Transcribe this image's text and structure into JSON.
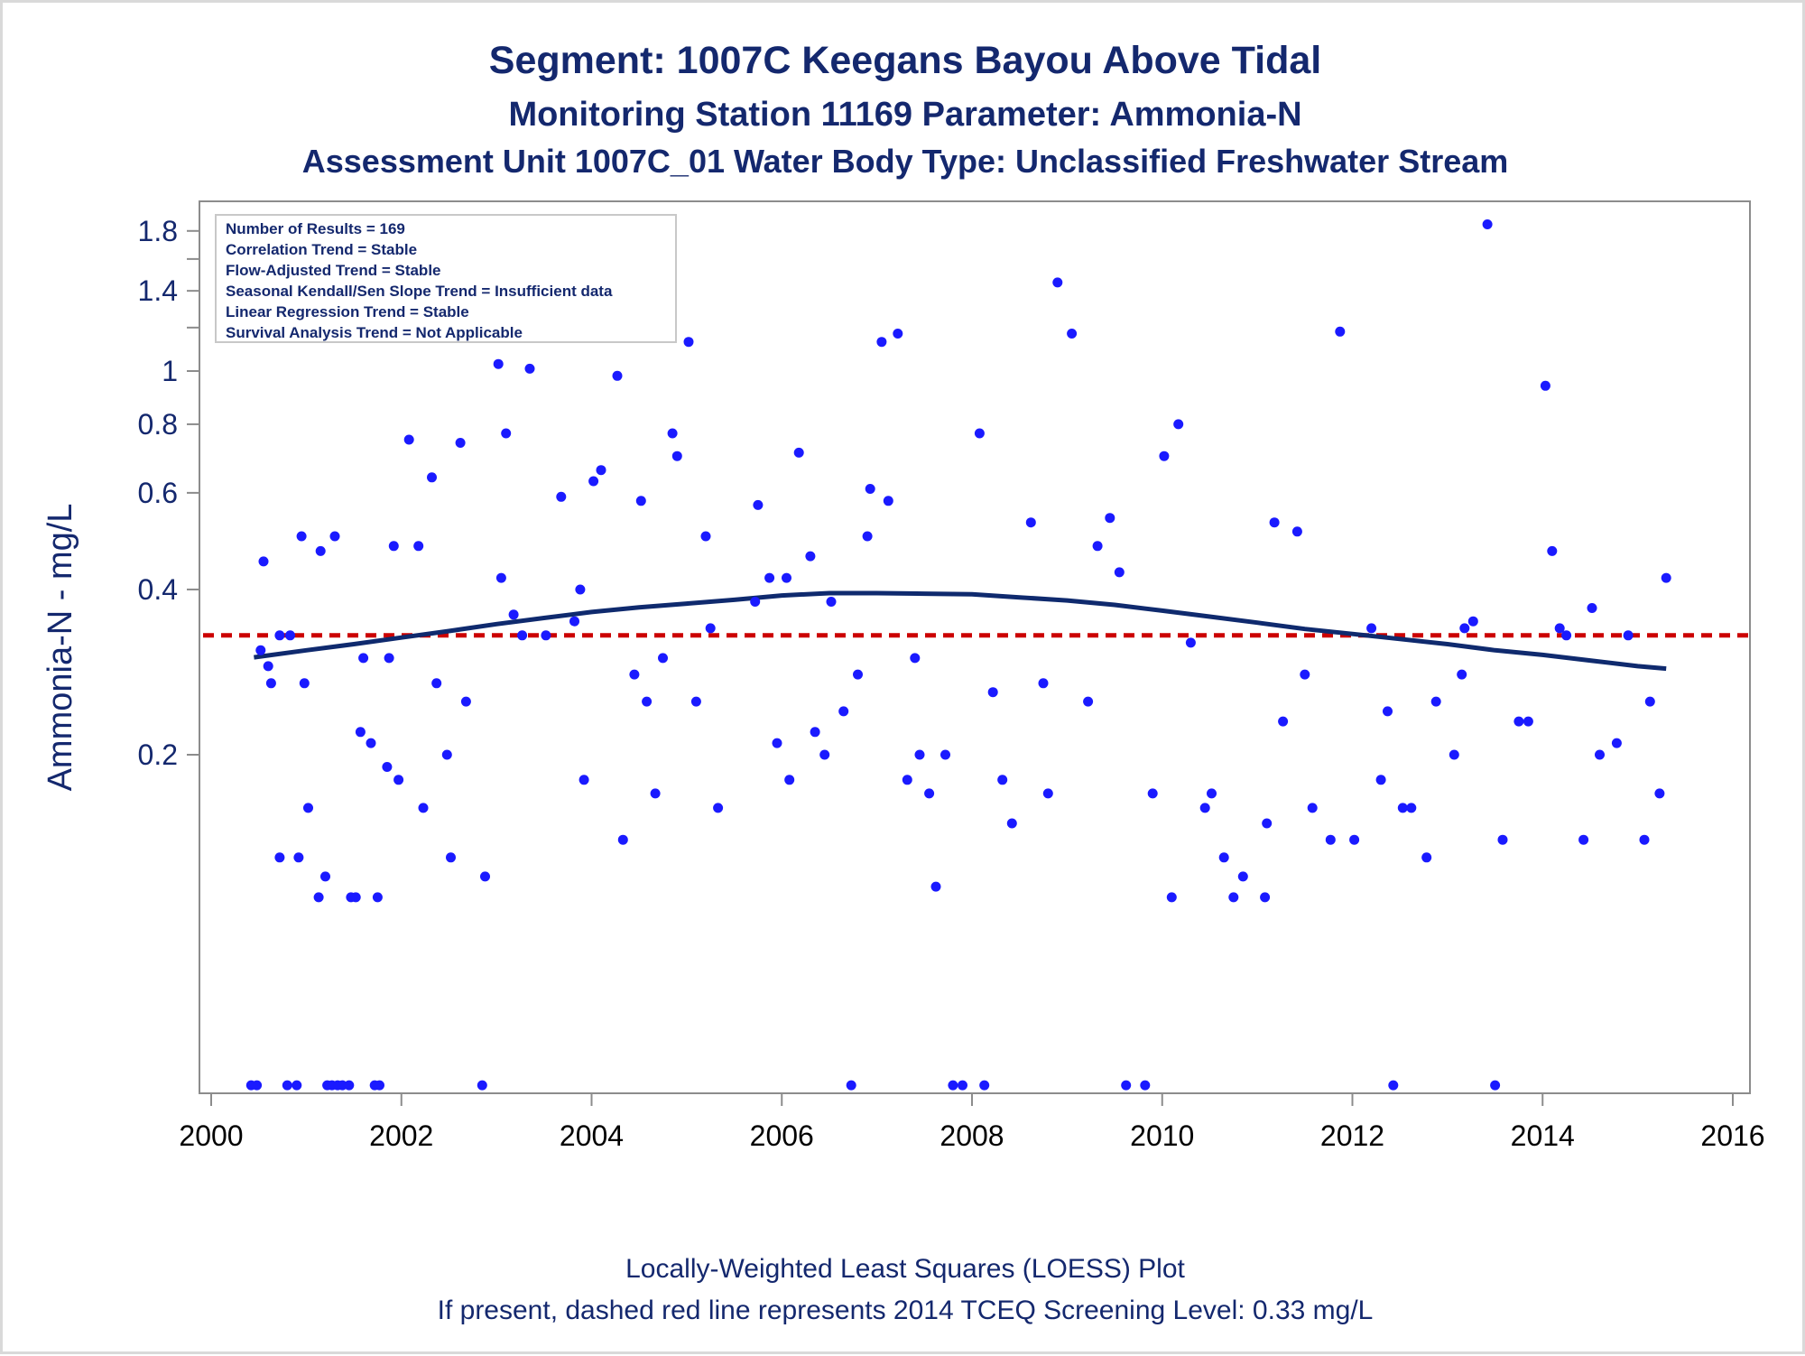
{
  "title": {
    "line1": "Segment: 1007C  Keegans Bayou Above Tidal",
    "line2": "Monitoring Station 11169 Parameter: Ammonia-N",
    "line3": "Assessment Unit 1007C_01   Water Body Type: Unclassified Freshwater Stream"
  },
  "inset": [
    "Number of Results = 169",
    "Correlation Trend = Stable",
    "Flow-Adjusted Trend = Stable",
    "Seasonal Kendall/Sen Slope Trend = Insufficient data",
    "Linear Regression Trend = Stable",
    "Survival Analysis Trend = Not Applicable"
  ],
  "footnote": {
    "line1": "Locally-Weighted Least Squares (LOESS) Plot",
    "line2": "If present, dashed red line represents 2014 TCEQ Screening Level: 0.33 mg/L"
  },
  "chart_data": {
    "type": "scatter",
    "ylabel": "Ammonia-N - mg/L",
    "xlabel": "",
    "x_ticks": [
      "2000",
      "2002",
      "2004",
      "2006",
      "2008",
      "2010",
      "2012",
      "2014",
      "2016"
    ],
    "y_ticks": [
      "0.2",
      "0.4",
      "0.6",
      "0.8",
      "1",
      "1.4",
      "1.8"
    ],
    "y_scale": "log",
    "xlim": [
      2000,
      2016
    ],
    "ylim": [
      0.05,
      2.0
    ],
    "grid": false,
    "screening_level": 0.33,
    "colors": {
      "points": "#1a1aff",
      "loess": "#0f2a6e",
      "screening": "#cc0000",
      "text": "#14286e"
    },
    "loess": {
      "x": [
        2000.45,
        2001.0,
        2001.5,
        2002.0,
        2002.5,
        2003.0,
        2003.5,
        2004.0,
        2004.5,
        2005.0,
        2005.5,
        2006.0,
        2006.5,
        2007.0,
        2007.5,
        2008.0,
        2008.5,
        2009.0,
        2009.5,
        2010.0,
        2010.5,
        2011.0,
        2011.5,
        2012.0,
        2012.5,
        2013.0,
        2013.5,
        2014.0,
        2014.5,
        2015.0,
        2015.3
      ],
      "y": [
        0.301,
        0.31,
        0.318,
        0.327,
        0.336,
        0.346,
        0.355,
        0.364,
        0.371,
        0.377,
        0.383,
        0.39,
        0.394,
        0.394,
        0.393,
        0.392,
        0.387,
        0.382,
        0.375,
        0.366,
        0.357,
        0.348,
        0.339,
        0.332,
        0.325,
        0.318,
        0.31,
        0.304,
        0.297,
        0.29,
        0.287
      ]
    },
    "points": [
      {
        "x": 2000.42,
        "y": 0.05
      },
      {
        "x": 2000.48,
        "y": 0.05
      },
      {
        "x": 2000.52,
        "y": 0.31
      },
      {
        "x": 2000.55,
        "y": 0.45
      },
      {
        "x": 2000.6,
        "y": 0.29
      },
      {
        "x": 2000.63,
        "y": 0.27
      },
      {
        "x": 2000.72,
        "y": 0.33
      },
      {
        "x": 2000.72,
        "y": 0.13
      },
      {
        "x": 2000.8,
        "y": 0.05
      },
      {
        "x": 2000.83,
        "y": 0.33
      },
      {
        "x": 2000.9,
        "y": 0.05
      },
      {
        "x": 2000.92,
        "y": 0.13
      },
      {
        "x": 2000.95,
        "y": 0.5
      },
      {
        "x": 2000.98,
        "y": 0.27
      },
      {
        "x": 2001.02,
        "y": 0.16
      },
      {
        "x": 2001.07,
        "y": 1.15
      },
      {
        "x": 2001.13,
        "y": 0.11
      },
      {
        "x": 2001.15,
        "y": 0.47
      },
      {
        "x": 2001.2,
        "y": 0.12
      },
      {
        "x": 2001.22,
        "y": 0.05
      },
      {
        "x": 2001.27,
        "y": 0.05
      },
      {
        "x": 2001.3,
        "y": 0.5
      },
      {
        "x": 2001.33,
        "y": 0.05
      },
      {
        "x": 2001.38,
        "y": 0.05
      },
      {
        "x": 2001.45,
        "y": 0.05
      },
      {
        "x": 2001.47,
        "y": 0.11
      },
      {
        "x": 2001.52,
        "y": 0.11
      },
      {
        "x": 2001.57,
        "y": 0.22
      },
      {
        "x": 2001.6,
        "y": 0.3
      },
      {
        "x": 2001.68,
        "y": 0.21
      },
      {
        "x": 2001.72,
        "y": 0.05
      },
      {
        "x": 2001.75,
        "y": 0.11
      },
      {
        "x": 2001.77,
        "y": 0.05
      },
      {
        "x": 2001.85,
        "y": 0.19
      },
      {
        "x": 2001.87,
        "y": 0.3
      },
      {
        "x": 2001.92,
        "y": 0.48
      },
      {
        "x": 2001.97,
        "y": 0.18
      },
      {
        "x": 2002.08,
        "y": 0.75
      },
      {
        "x": 2002.18,
        "y": 0.48
      },
      {
        "x": 2002.23,
        "y": 0.16
      },
      {
        "x": 2002.32,
        "y": 0.64
      },
      {
        "x": 2002.37,
        "y": 0.27
      },
      {
        "x": 2002.48,
        "y": 0.2
      },
      {
        "x": 2002.52,
        "y": 0.13
      },
      {
        "x": 2002.62,
        "y": 0.74
      },
      {
        "x": 2002.68,
        "y": 0.25
      },
      {
        "x": 2002.85,
        "y": 0.05
      },
      {
        "x": 2002.88,
        "y": 0.12
      },
      {
        "x": 2003.02,
        "y": 1.03
      },
      {
        "x": 2003.05,
        "y": 0.42
      },
      {
        "x": 2003.1,
        "y": 0.77
      },
      {
        "x": 2003.18,
        "y": 0.36
      },
      {
        "x": 2003.27,
        "y": 0.33
      },
      {
        "x": 2003.35,
        "y": 1.01
      },
      {
        "x": 2003.42,
        "y": 1.15
      },
      {
        "x": 2003.52,
        "y": 0.33
      },
      {
        "x": 2003.68,
        "y": 0.59
      },
      {
        "x": 2003.82,
        "y": 0.35
      },
      {
        "x": 2003.88,
        "y": 0.4
      },
      {
        "x": 2003.92,
        "y": 0.18
      },
      {
        "x": 2004.02,
        "y": 0.63
      },
      {
        "x": 2004.1,
        "y": 0.66
      },
      {
        "x": 2004.27,
        "y": 0.98
      },
      {
        "x": 2004.33,
        "y": 0.14
      },
      {
        "x": 2004.45,
        "y": 0.28
      },
      {
        "x": 2004.52,
        "y": 0.58
      },
      {
        "x": 2004.58,
        "y": 0.25
      },
      {
        "x": 2004.67,
        "y": 0.17
      },
      {
        "x": 2004.75,
        "y": 0.3
      },
      {
        "x": 2004.85,
        "y": 0.77
      },
      {
        "x": 2004.9,
        "y": 0.7
      },
      {
        "x": 2005.02,
        "y": 1.13
      },
      {
        "x": 2005.1,
        "y": 0.25
      },
      {
        "x": 2005.2,
        "y": 0.5
      },
      {
        "x": 2005.25,
        "y": 0.34
      },
      {
        "x": 2005.33,
        "y": 0.16
      },
      {
        "x": 2005.72,
        "y": 0.38
      },
      {
        "x": 2005.75,
        "y": 0.57
      },
      {
        "x": 2005.87,
        "y": 0.42
      },
      {
        "x": 2005.95,
        "y": 0.21
      },
      {
        "x": 2006.05,
        "y": 0.42
      },
      {
        "x": 2006.08,
        "y": 0.18
      },
      {
        "x": 2006.18,
        "y": 0.71
      },
      {
        "x": 2006.3,
        "y": 0.46
      },
      {
        "x": 2006.35,
        "y": 0.22
      },
      {
        "x": 2006.45,
        "y": 0.2
      },
      {
        "x": 2006.52,
        "y": 0.38
      },
      {
        "x": 2006.65,
        "y": 0.24
      },
      {
        "x": 2006.73,
        "y": 0.05
      },
      {
        "x": 2006.8,
        "y": 0.28
      },
      {
        "x": 2006.9,
        "y": 0.5
      },
      {
        "x": 2006.93,
        "y": 0.61
      },
      {
        "x": 2007.05,
        "y": 1.13
      },
      {
        "x": 2007.12,
        "y": 0.58
      },
      {
        "x": 2007.22,
        "y": 1.17
      },
      {
        "x": 2007.32,
        "y": 0.18
      },
      {
        "x": 2007.4,
        "y": 0.3
      },
      {
        "x": 2007.45,
        "y": 0.2
      },
      {
        "x": 2007.55,
        "y": 0.17
      },
      {
        "x": 2007.62,
        "y": 0.115
      },
      {
        "x": 2007.72,
        "y": 0.2
      },
      {
        "x": 2007.8,
        "y": 0.05
      },
      {
        "x": 2007.9,
        "y": 0.05
      },
      {
        "x": 2008.08,
        "y": 0.77
      },
      {
        "x": 2008.13,
        "y": 0.05
      },
      {
        "x": 2008.22,
        "y": 0.26
      },
      {
        "x": 2008.32,
        "y": 0.18
      },
      {
        "x": 2008.42,
        "y": 0.15
      },
      {
        "x": 2008.62,
        "y": 0.53
      },
      {
        "x": 2008.75,
        "y": 0.27
      },
      {
        "x": 2008.8,
        "y": 0.17
      },
      {
        "x": 2008.9,
        "y": 1.45
      },
      {
        "x": 2009.05,
        "y": 1.17
      },
      {
        "x": 2009.22,
        "y": 0.25
      },
      {
        "x": 2009.32,
        "y": 0.48
      },
      {
        "x": 2009.45,
        "y": 0.54
      },
      {
        "x": 2009.55,
        "y": 0.43
      },
      {
        "x": 2009.62,
        "y": 0.05
      },
      {
        "x": 2009.82,
        "y": 0.05
      },
      {
        "x": 2009.9,
        "y": 0.17
      },
      {
        "x": 2010.02,
        "y": 0.7
      },
      {
        "x": 2010.1,
        "y": 0.11
      },
      {
        "x": 2010.17,
        "y": 0.8
      },
      {
        "x": 2010.3,
        "y": 0.32
      },
      {
        "x": 2010.45,
        "y": 0.16
      },
      {
        "x": 2010.52,
        "y": 0.17
      },
      {
        "x": 2010.65,
        "y": 0.13
      },
      {
        "x": 2010.75,
        "y": 0.11
      },
      {
        "x": 2010.85,
        "y": 0.12
      },
      {
        "x": 2011.08,
        "y": 0.11
      },
      {
        "x": 2011.1,
        "y": 0.15
      },
      {
        "x": 2011.18,
        "y": 0.53
      },
      {
        "x": 2011.27,
        "y": 0.23
      },
      {
        "x": 2011.42,
        "y": 0.51
      },
      {
        "x": 2011.5,
        "y": 0.28
      },
      {
        "x": 2011.58,
        "y": 0.16
      },
      {
        "x": 2011.77,
        "y": 0.14
      },
      {
        "x": 2011.87,
        "y": 1.18
      },
      {
        "x": 2012.02,
        "y": 0.14
      },
      {
        "x": 2012.2,
        "y": 0.34
      },
      {
        "x": 2012.3,
        "y": 0.18
      },
      {
        "x": 2012.37,
        "y": 0.24
      },
      {
        "x": 2012.43,
        "y": 0.05
      },
      {
        "x": 2012.53,
        "y": 0.16
      },
      {
        "x": 2012.62,
        "y": 0.16
      },
      {
        "x": 2012.78,
        "y": 0.13
      },
      {
        "x": 2012.88,
        "y": 0.25
      },
      {
        "x": 2013.07,
        "y": 0.2
      },
      {
        "x": 2013.15,
        "y": 0.28
      },
      {
        "x": 2013.18,
        "y": 0.34
      },
      {
        "x": 2013.27,
        "y": 0.35
      },
      {
        "x": 2013.42,
        "y": 1.85
      },
      {
        "x": 2013.5,
        "y": 0.05
      },
      {
        "x": 2013.58,
        "y": 0.14
      },
      {
        "x": 2013.75,
        "y": 0.23
      },
      {
        "x": 2013.85,
        "y": 0.23
      },
      {
        "x": 2014.03,
        "y": 0.94
      },
      {
        "x": 2014.1,
        "y": 0.47
      },
      {
        "x": 2014.18,
        "y": 0.34
      },
      {
        "x": 2014.25,
        "y": 0.33
      },
      {
        "x": 2014.43,
        "y": 0.14
      },
      {
        "x": 2014.52,
        "y": 0.37
      },
      {
        "x": 2014.6,
        "y": 0.2
      },
      {
        "x": 2014.78,
        "y": 0.21
      },
      {
        "x": 2014.9,
        "y": 0.33
      },
      {
        "x": 2015.07,
        "y": 0.14
      },
      {
        "x": 2015.13,
        "y": 0.25
      },
      {
        "x": 2015.23,
        "y": 0.17
      },
      {
        "x": 2015.3,
        "y": 0.42
      }
    ]
  }
}
